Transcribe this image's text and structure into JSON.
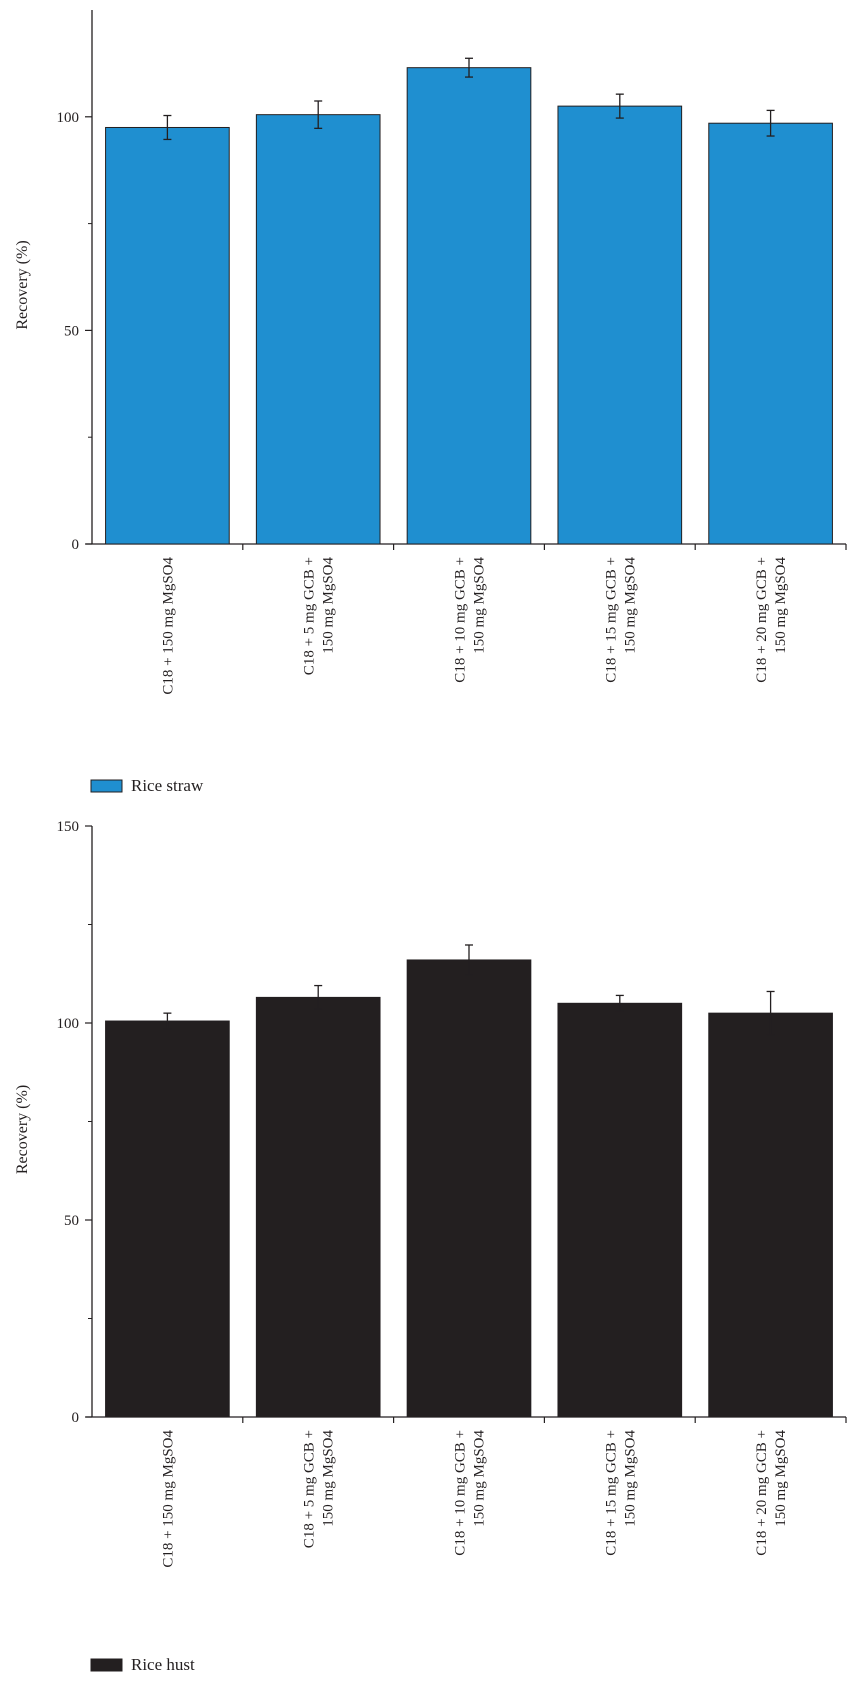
{
  "chart_data": [
    {
      "type": "bar",
      "title": "",
      "categories": [
        [
          "C18 + 150 mg MgSO4"
        ],
        [
          "C18 + 5 mg GCB +",
          "150 mg MgSO4"
        ],
        [
          "C18 + 10 mg GCB +",
          "150 mg MgSO4"
        ],
        [
          "C18 + 15 mg GCB +",
          "150 mg MgSO4"
        ],
        [
          "C18 + 20 mg GCB +",
          "150 mg MgSO4"
        ]
      ],
      "series": [
        {
          "name": "Rice straw",
          "values": [
            97.5,
            100.5,
            111.5,
            102.5,
            98.5
          ],
          "errors": [
            2.8,
            3.2,
            2.2,
            2.8,
            3.0
          ],
          "color": "#1f8fd0"
        }
      ],
      "xlabel": "",
      "ylabel": "Recovery (%)",
      "ylim": [
        0,
        125
      ],
      "yticks": [
        0,
        50,
        100
      ],
      "minor_yticks": [
        25,
        75
      ],
      "legend": "bottom-left",
      "grid": false
    },
    {
      "type": "bar",
      "title": "",
      "categories": [
        [
          "C18 + 150 mg MgSO4"
        ],
        [
          "C18 + 5 mg GCB +",
          "150 mg MgSO4"
        ],
        [
          "C18 + 10 mg GCB +",
          "150 mg MgSO4"
        ],
        [
          "C18 + 15 mg GCB +",
          "150 mg MgSO4"
        ],
        [
          "C18 + 20 mg GCB +",
          "150 mg MgSO4"
        ]
      ],
      "series": [
        {
          "name": "Rice hust",
          "values": [
            100.5,
            106.5,
            116.0,
            105.0,
            102.5
          ],
          "errors": [
            2.0,
            3.0,
            3.8,
            2.0,
            5.5
          ],
          "color": "#231f20"
        }
      ],
      "xlabel": "",
      "ylabel": "Recovery (%)",
      "ylim": [
        0,
        150
      ],
      "yticks": [
        0,
        50,
        100,
        150
      ],
      "minor_yticks": [
        25,
        75,
        125
      ],
      "legend": "bottom-left",
      "grid": false
    }
  ]
}
